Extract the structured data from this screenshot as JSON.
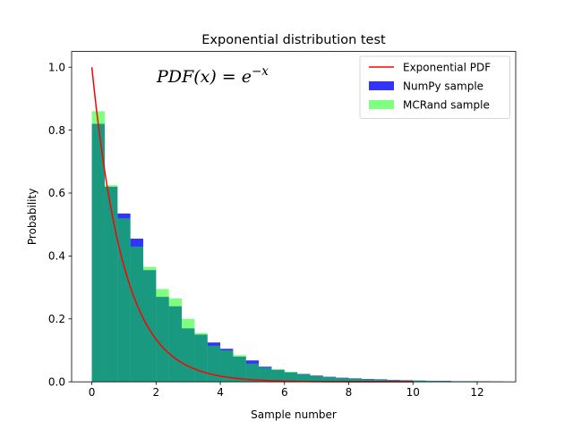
{
  "chart_data": {
    "type": "bar",
    "title": "Exponential distribution test",
    "xlabel": "Sample number",
    "ylabel": "Probability",
    "xlim": [
      -0.63,
      13.2
    ],
    "ylim": [
      0,
      1.05
    ],
    "xticks": [
      0,
      2,
      4,
      6,
      8,
      10,
      12
    ],
    "yticks": [
      0.0,
      0.2,
      0.4,
      0.6,
      0.8,
      1.0
    ],
    "xtick_labels": [
      "0",
      "2",
      "4",
      "6",
      "8",
      "10",
      "12"
    ],
    "ytick_labels": [
      "0.0",
      "0.2",
      "0.4",
      "0.6",
      "0.8",
      "1.0"
    ],
    "grid": false,
    "annotation": {
      "text": "PDF(x) = e^(-x)",
      "lhs": "PDF(x) = e",
      "exponent": "−x",
      "x": 2.0,
      "y": 0.95
    },
    "legend_position": "upper right",
    "series": [
      {
        "name": "NumPy sample",
        "kind": "histogram",
        "color": "#0000ff",
        "alpha": 0.8,
        "bin_width": 0.4,
        "bin_start": 0.0,
        "values": [
          0.82,
          0.62,
          0.535,
          0.455,
          0.355,
          0.27,
          0.24,
          0.17,
          0.15,
          0.125,
          0.105,
          0.08,
          0.068,
          0.048,
          0.038,
          0.03,
          0.025,
          0.02,
          0.016,
          0.013,
          0.011,
          0.009,
          0.008,
          0.006,
          0.005,
          0.004,
          0.003,
          0.003,
          0.002,
          0.002,
          0.0015,
          0.001
        ]
      },
      {
        "name": "MCRand sample",
        "kind": "histogram",
        "color": "#00ff00",
        "alpha": 0.5,
        "bin_width": 0.4,
        "bin_start": 0.0,
        "values": [
          0.86,
          0.625,
          0.52,
          0.43,
          0.365,
          0.295,
          0.265,
          0.2,
          0.155,
          0.115,
          0.1,
          0.085,
          0.058,
          0.045,
          0.04,
          0.032,
          0.024,
          0.019,
          0.015,
          0.012,
          0.01,
          0.008,
          0.007,
          0.005,
          0.004,
          0.004,
          0.003,
          0.002,
          0.002,
          0.0015,
          0.001,
          0.001
        ]
      },
      {
        "name": "Exponential PDF",
        "kind": "line",
        "color": "#ff0000",
        "function": "exp(-x)",
        "x_range": [
          0,
          10
        ]
      }
    ],
    "legend": [
      "Exponential PDF",
      "NumPy sample",
      "MCRand sample"
    ]
  }
}
